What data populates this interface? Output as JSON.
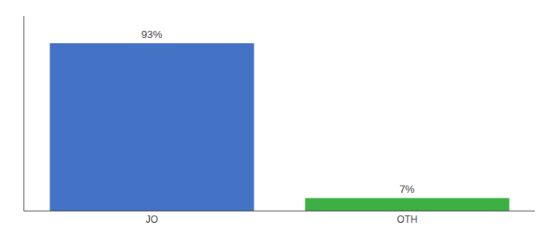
{
  "chart_data": {
    "type": "bar",
    "categories": [
      "JO",
      "OTH"
    ],
    "values": [
      93,
      7
    ],
    "value_labels": [
      "93%",
      "7%"
    ],
    "colors": [
      "#4472c4",
      "#3cb043"
    ],
    "data_labels": true,
    "ylim": [
      0,
      108
    ],
    "tick_labels": "x",
    "grid": false
  }
}
